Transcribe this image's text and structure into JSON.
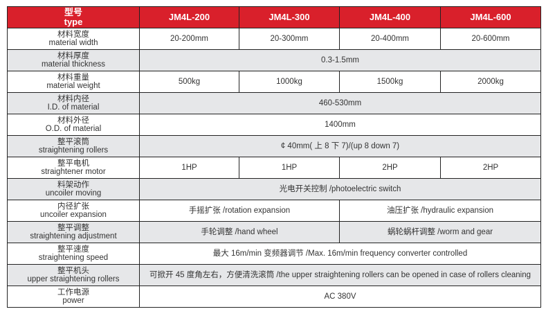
{
  "header": {
    "label_cn": "型号",
    "label_en": "type",
    "models": [
      "JM4L-200",
      "JM4L-300",
      "JM4L-400",
      "JM4L-600"
    ]
  },
  "colors": {
    "header_bg": "#d9202b",
    "alt_row": "#e6e7e9"
  },
  "rows": [
    {
      "cn": "材料宽度",
      "en": "material width",
      "values": [
        "20-200mm",
        "20-300mm",
        "20-400mm",
        "20-600mm"
      ]
    },
    {
      "cn": "材料厚度",
      "en": "material thickness",
      "values": [
        "0.3-1.5mm"
      ]
    },
    {
      "cn": "材料重量",
      "en": "material weight",
      "values": [
        "500kg",
        "1000kg",
        "1500kg",
        "2000kg"
      ]
    },
    {
      "cn": "材料内径",
      "en": "I.D. of material",
      "values": [
        "460-530mm"
      ]
    },
    {
      "cn": "材料外径",
      "en": "O.D. of material",
      "values": [
        "1400mm"
      ]
    },
    {
      "cn": "整平滚筒",
      "en": "straightening rollers",
      "values": [
        "¢ 40mm( 上 8 下 7)/(up 8 down 7)"
      ]
    },
    {
      "cn": "整平电机",
      "en": "straightener motor",
      "values": [
        "1HP",
        "1HP",
        "2HP",
        "2HP"
      ]
    },
    {
      "cn": "料架动作",
      "en": "uncoiler moving",
      "values": [
        "光电开关控制 /photoelectric switch"
      ]
    },
    {
      "cn": "内径扩张",
      "en": "uncoiler expansion",
      "values": [
        "手摇扩张 /rotation expansion",
        "油压扩张 /hydraulic expansion"
      ]
    },
    {
      "cn": "整平调整",
      "en": "straightening adjustment",
      "values": [
        "手轮调整 /hand wheel",
        "蜗轮蜗杆调整 /worm and gear"
      ]
    },
    {
      "cn": "整平速度",
      "en": "straightening speed",
      "values": [
        "最大 16m/min 变频器调节 /Max. 16m/min frequency converter controlled"
      ]
    },
    {
      "cn": "整平机头",
      "en": "upper straightening rollers",
      "values": [
        "可掀开 45 度角左右，方便清洗滚筒 /the upper straightening rollers can be opened in case of rollers cleaning"
      ]
    },
    {
      "cn": "工作电源",
      "en": "power",
      "values": [
        "AC 380V"
      ]
    }
  ]
}
